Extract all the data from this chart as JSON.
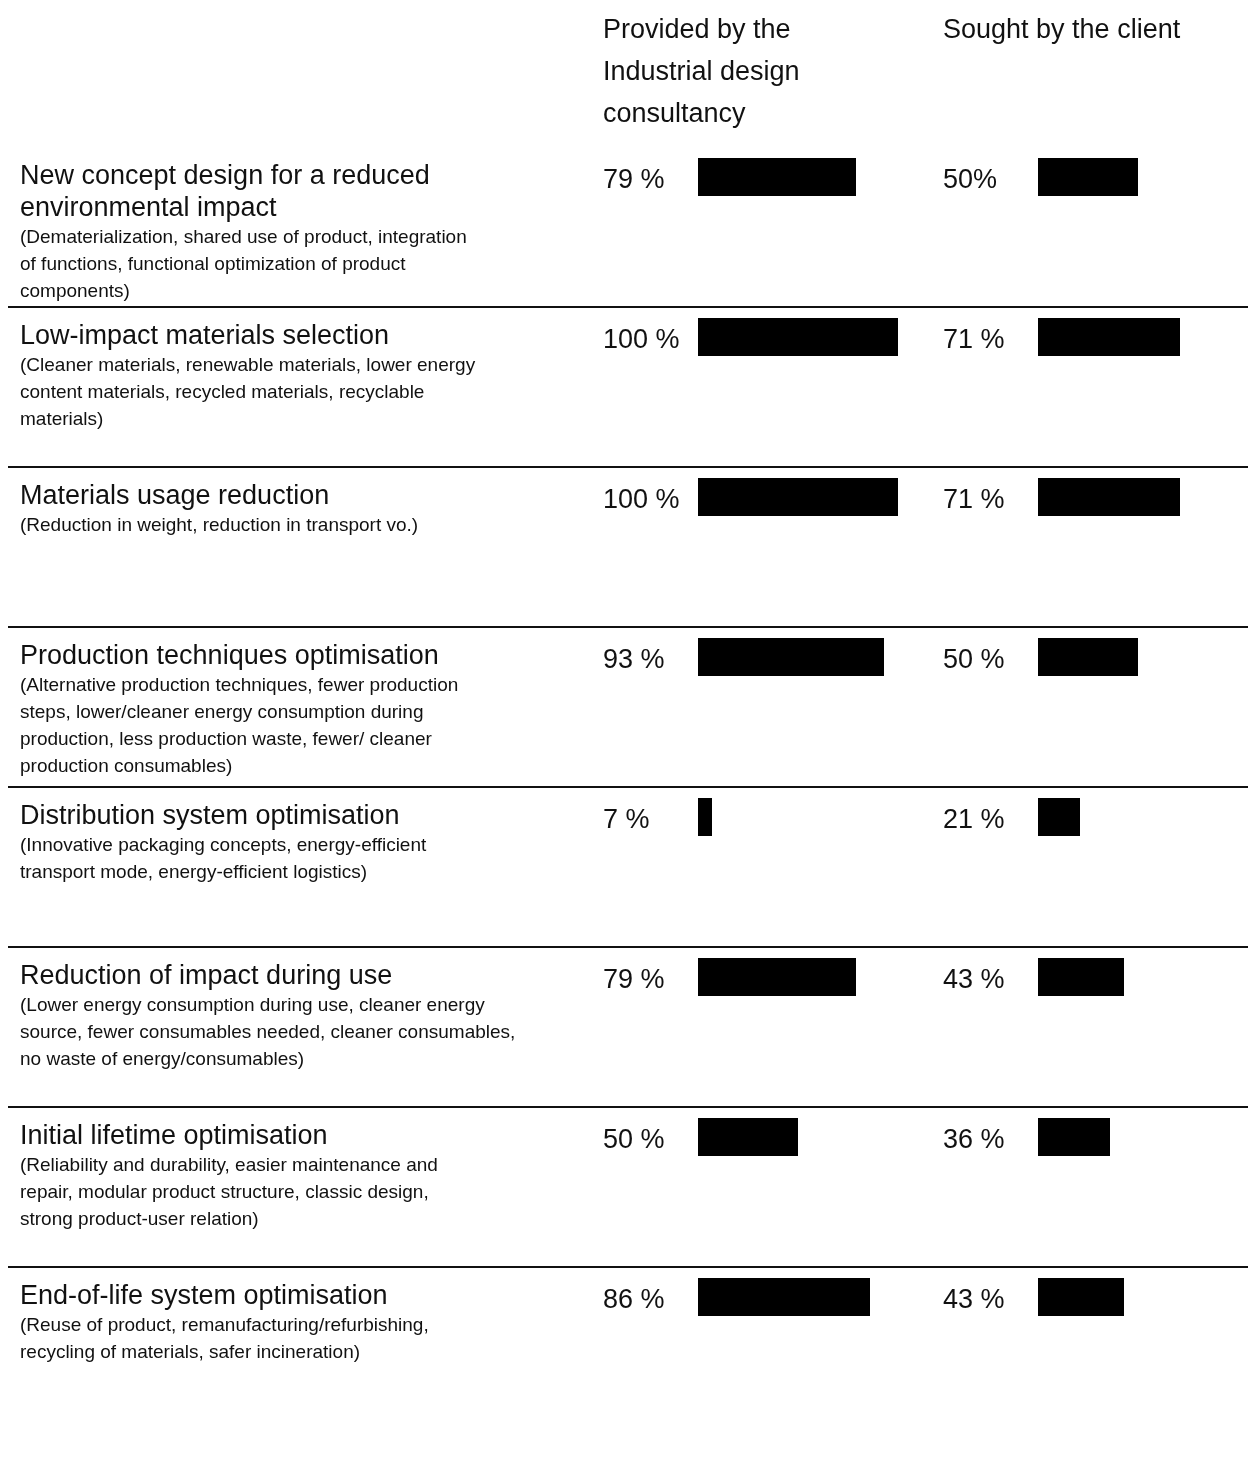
{
  "chart_data": [
    {
      "type": "bar",
      "orientation": "horizontal",
      "title": "Provided by the Industrial design consultancy",
      "tick_labels": "y",
      "data_labels": true,
      "color": "#000000",
      "categories": [
        "New concept design for a reduced environmental impact\n(Dematerialization, shared use of product, integration of functions, functional optimization of product components)",
        "Low-impact materials selection\n(Cleaner materials, renewable materials, lower energy content materials, recycled materials, recyclable materials)",
        "Materials usage reduction\n(Reduction in weight, reduction in transport vo.)",
        "Production techniques optimisation\n(Alternative production techniques, fewer production steps, lower/cleaner energy consumption during production, less production waste, fewer/ cleaner production consumables)",
        "Distribution system optimisation\n(Innovative packaging concepts, energy-efficient transport mode, energy-efficient logistics)",
        "Reduction of impact during use\n(Lower energy consumption during use, cleaner energy source, fewer consumables needed, cleaner consumables, no waste of energy/consumables)",
        "Initial lifetime optimisation\n(Reliability and durability, easier maintenance and repair, modular product structure, classic design, strong product-user relation)",
        "End-of-life system optimisation\n(Reuse of product, remanufacturing/refurbishing, recycling of materials, safer incineration)"
      ],
      "values": [
        79,
        100,
        100,
        93,
        7,
        79,
        50,
        86
      ],
      "value_labels": [
        "79 %",
        "100 %",
        "100 %",
        "93 %",
        "7 %",
        "79 %",
        "50 %",
        "86 %"
      ]
    },
    {
      "type": "bar",
      "orientation": "horizontal",
      "title": "Sought by the client",
      "tick_labels": false,
      "data_labels": true,
      "color": "#000000",
      "values": [
        50,
        71,
        71,
        50,
        21,
        43,
        36,
        43
      ],
      "value_labels": [
        "50%",
        "71 %",
        "71 %",
        "50 %",
        "21 %",
        "43 %",
        "36 %",
        "43 %"
      ]
    }
  ]
}
